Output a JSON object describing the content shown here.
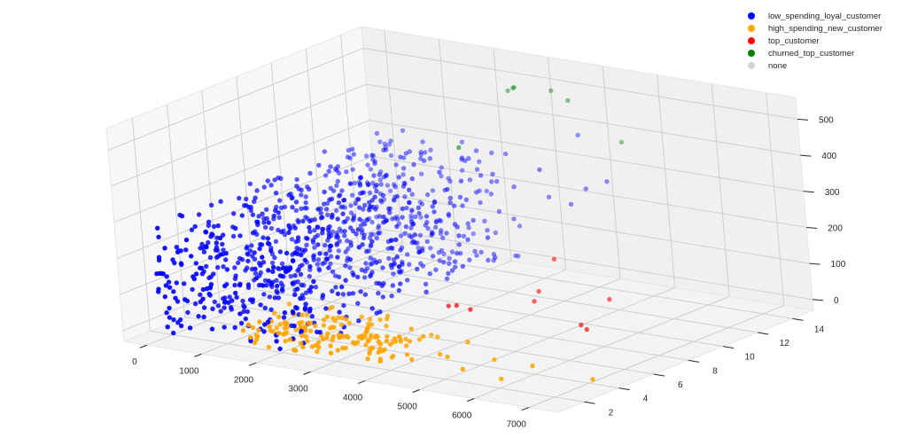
{
  "chart_data": {
    "type": "scatter",
    "projection": "3d",
    "title": "",
    "xlabel": "",
    "ylabel": "",
    "zlabel": "",
    "xlim": [
      -420,
      7540
    ],
    "ylim": [
      0.5,
      15.2
    ],
    "zlim": [
      -30,
      560
    ],
    "x_ticks": [
      0,
      1000,
      2000,
      3000,
      4000,
      5000,
      6000,
      7000
    ],
    "y_ticks": [
      2,
      4,
      6,
      8,
      10,
      12,
      14
    ],
    "z_ticks": [
      0,
      100,
      200,
      300,
      400,
      500
    ],
    "grid": true,
    "legend_position": "upper right",
    "legend": [
      {
        "label": "low_spending_loyal_customer",
        "color": "#0000ff"
      },
      {
        "label": "high_spending_new_customer",
        "color": "#ffa500"
      },
      {
        "label": "top_customer",
        "color": "#ff0000"
      },
      {
        "label": "churned_top_customer",
        "color": "#008000"
      },
      {
        "label": "none",
        "color": "#d3d3d3"
      }
    ],
    "series": [
      {
        "name": "low_spending_loyal_customer",
        "color": "#0000ff",
        "note": "dense cluster: x approx 0-2500, y approx 1-15, z approx 0-300; sparse outliers to x approx 4000",
        "cluster": {
          "x_range": [
            0,
            2600
          ],
          "y_range": [
            1,
            15
          ],
          "z_range": [
            0,
            300
          ],
          "count": 900
        },
        "points": [
          {
            "x": 2900,
            "y": 13,
            "z": 240
          },
          {
            "x": 3200,
            "y": 14,
            "z": 200
          },
          {
            "x": 3600,
            "y": 14,
            "z": 190
          },
          {
            "x": 3900,
            "y": 14,
            "z": 240
          },
          {
            "x": 4300,
            "y": 14,
            "z": 270
          },
          {
            "x": 2800,
            "y": 10,
            "z": 160
          },
          {
            "x": 3000,
            "y": 11,
            "z": 140
          },
          {
            "x": 3400,
            "y": 13,
            "z": 300
          },
          {
            "x": 2700,
            "y": 8,
            "z": 150
          },
          {
            "x": 3500,
            "y": 15,
            "z": 360
          }
        ]
      },
      {
        "name": "high_spending_new_customer",
        "color": "#ffa500",
        "note": "cluster at low y: x approx 1500-4000, y approx 1-4, z approx 0-60",
        "cluster": {
          "x_range": [
            1500,
            4200
          ],
          "y_range": [
            1,
            4.5
          ],
          "z_range": [
            0,
            60
          ],
          "count": 160
        },
        "points": [
          {
            "x": 4600,
            "y": 3,
            "z": 10
          },
          {
            "x": 4900,
            "y": 2.5,
            "z": 20
          },
          {
            "x": 4400,
            "y": 2,
            "z": 10
          },
          {
            "x": 5600,
            "y": 3,
            "z": 20
          },
          {
            "x": 5500,
            "y": 1.5,
            "z": 20
          },
          {
            "x": 6300,
            "y": 3,
            "z": 20
          },
          {
            "x": 6200,
            "y": 1.5,
            "z": 10
          },
          {
            "x": 7400,
            "y": 3,
            "z": 10
          },
          {
            "x": 4800,
            "y": 4,
            "z": 30
          }
        ]
      },
      {
        "name": "top_customer",
        "color": "#ff0000",
        "points": [
          {
            "x": 3500,
            "y": 7,
            "z": 40
          },
          {
            "x": 3650,
            "y": 7,
            "z": 45
          },
          {
            "x": 3900,
            "y": 7,
            "z": 40
          },
          {
            "x": 4200,
            "y": 10,
            "z": 40
          },
          {
            "x": 4200,
            "y": 11,
            "z": 110
          },
          {
            "x": 5500,
            "y": 10,
            "z": 50
          },
          {
            "x": 5600,
            "y": 8,
            "z": 20
          },
          {
            "x": 5700,
            "y": 8,
            "z": 10
          },
          {
            "x": 4100,
            "y": 10,
            "z": 10
          }
        ]
      },
      {
        "name": "churned_top_customer",
        "color": "#008000",
        "points": [
          {
            "x": 2600,
            "y": 14,
            "z": 480
          },
          {
            "x": 2700,
            "y": 14,
            "z": 490
          },
          {
            "x": 2720,
            "y": 14,
            "z": 492
          },
          {
            "x": 3400,
            "y": 14,
            "z": 500
          },
          {
            "x": 3700,
            "y": 14,
            "z": 480
          },
          {
            "x": 2600,
            "y": 11,
            "z": 380
          },
          {
            "x": 4300,
            "y": 15,
            "z": 360
          }
        ]
      },
      {
        "name": "none",
        "color": "#d3d3d3",
        "points": []
      }
    ]
  }
}
